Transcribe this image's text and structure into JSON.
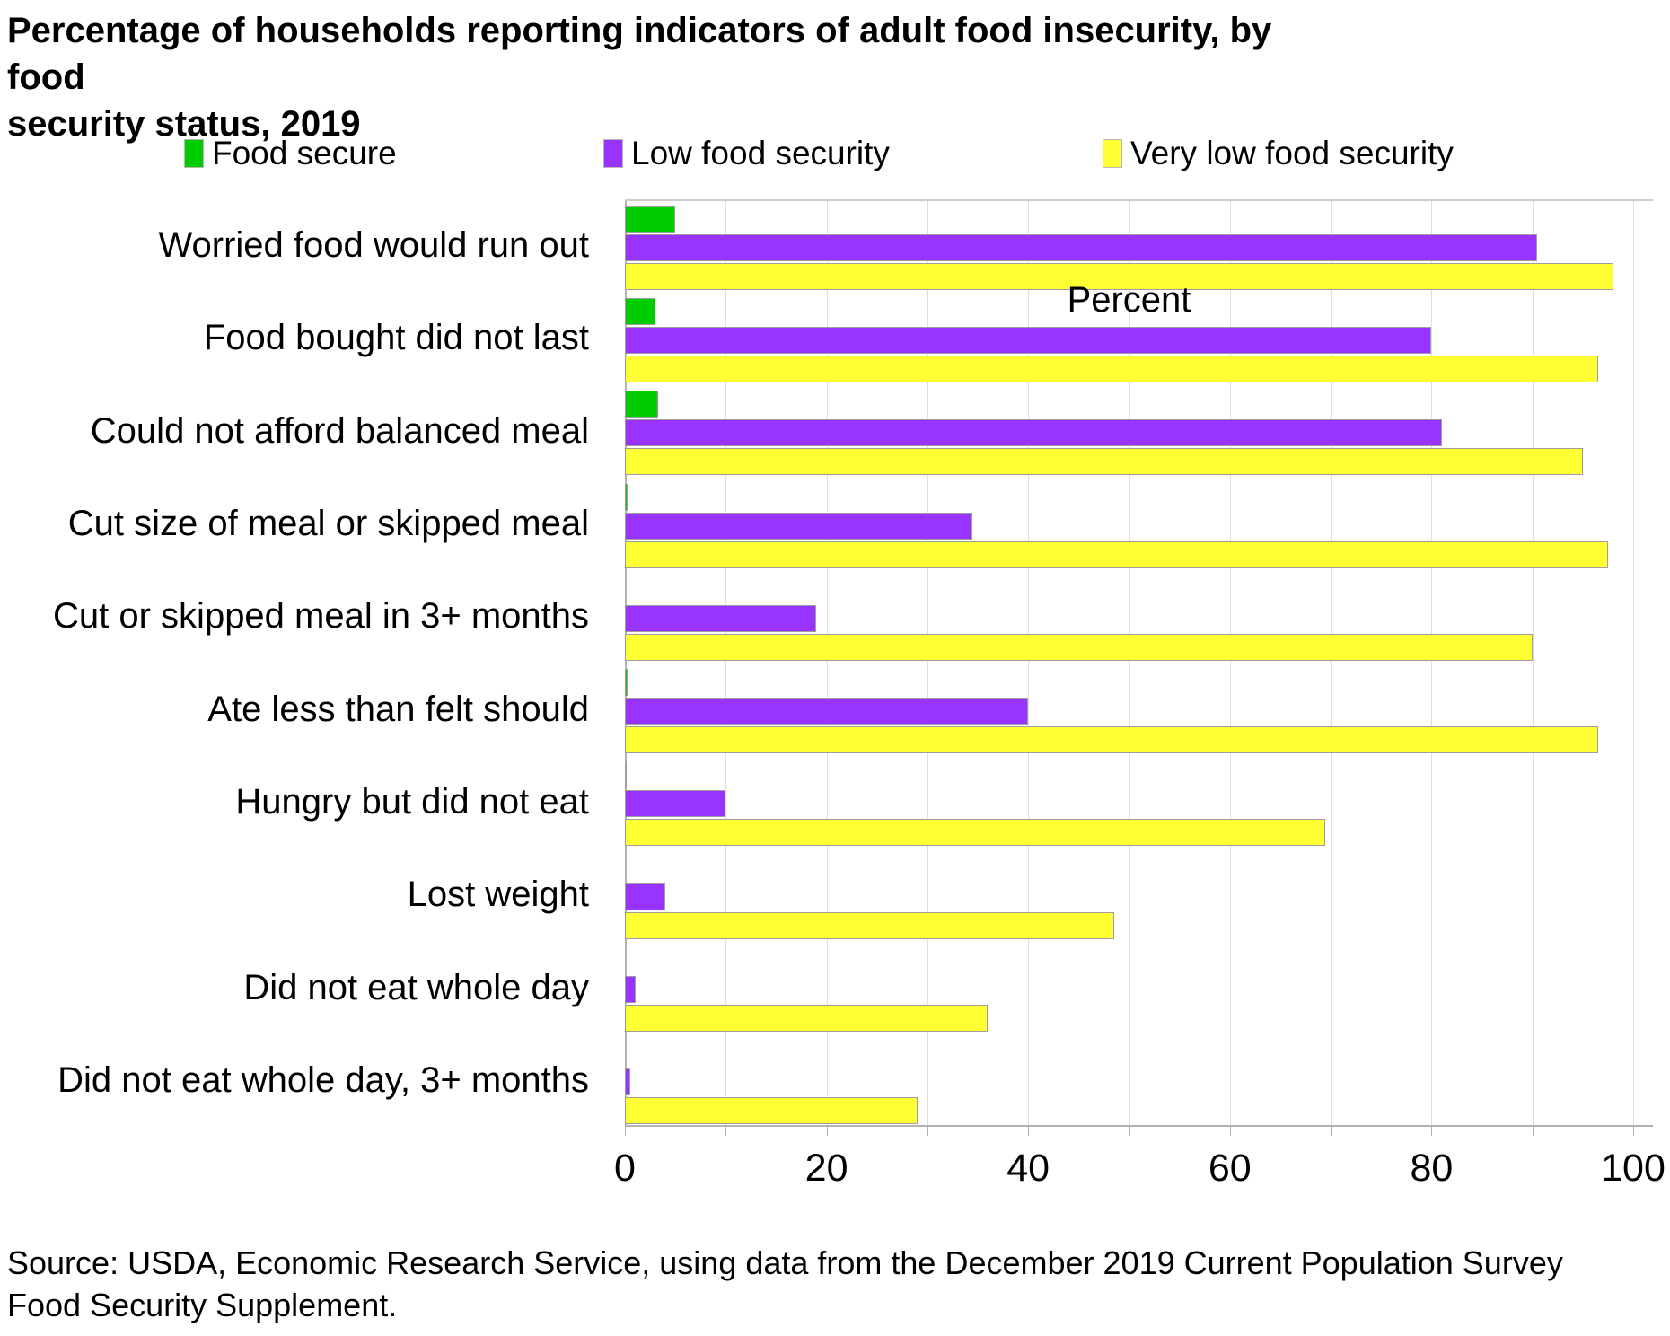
{
  "title": {
    "line1": "Percentage of households reporting indicators of adult food insecurity, by food",
    "line2": "security status, 2019"
  },
  "source": {
    "line1": "Source: USDA, Economic Research Service, using data from the December 2019 Current Population Survey",
    "line2": "Food Security Supplement."
  },
  "colors": {
    "food_secure": "#00cc00",
    "low_food_security": "#9933ff",
    "very_low_food_security": "#ffff33",
    "gridline": "#dedede",
    "axis": "#b3b3b3",
    "bar_border": "#9e9e9e"
  },
  "chart_data": {
    "type": "bar",
    "orientation": "horizontal",
    "title": "Percentage of households reporting indicators of adult food insecurity, by food security status, 2019",
    "xlabel": "Percent",
    "ylabel": "",
    "xlim": [
      0,
      100
    ],
    "xticks": [
      0,
      20,
      40,
      60,
      80,
      100
    ],
    "minor_grid_step": 10,
    "grid": true,
    "legend_position": "top",
    "categories": [
      "Worried food would run out",
      "Food bought did not last",
      "Could not afford balanced meal",
      "Cut size of meal or skipped meal",
      "Cut or skipped meal in 3+ months",
      "Ate less than felt should",
      "Hungry but did not eat",
      "Lost weight",
      "Did not eat whole day",
      "Did not eat whole day, 3+ months"
    ],
    "series": [
      {
        "name": "Food secure",
        "color": "#00cc00",
        "values": [
          5,
          3,
          3.3,
          0.3,
          0,
          0.3,
          0.1,
          0,
          0,
          0
        ]
      },
      {
        "name": "Low food security",
        "color": "#9933ff",
        "values": [
          90.5,
          80,
          81,
          34.5,
          19,
          40,
          10,
          4,
          1.1,
          0.5
        ]
      },
      {
        "name": "Very low food security",
        "color": "#ffff33",
        "values": [
          98,
          96.5,
          95,
          97.5,
          90,
          96.5,
          69.5,
          48.5,
          36,
          29
        ]
      }
    ]
  }
}
